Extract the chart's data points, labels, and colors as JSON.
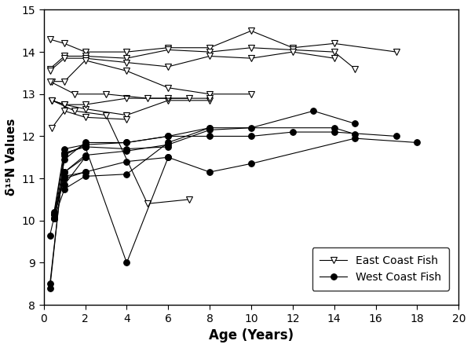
{
  "east_coast_series": [
    [
      [
        0.3,
        14.3
      ],
      [
        1.0,
        14.2
      ],
      [
        2.0,
        14.0
      ],
      [
        4.0,
        14.0
      ],
      [
        6.0,
        14.1
      ],
      [
        8.0,
        14.1
      ],
      [
        10.0,
        14.5
      ],
      [
        12.0,
        14.1
      ],
      [
        14.0,
        14.2
      ],
      [
        17.0,
        14.0
      ]
    ],
    [
      [
        0.3,
        13.6
      ],
      [
        1.0,
        13.9
      ],
      [
        2.0,
        13.9
      ],
      [
        4.0,
        13.85
      ],
      [
        6.0,
        14.05
      ],
      [
        8.0,
        14.0
      ],
      [
        10.0,
        14.1
      ],
      [
        12.0,
        14.05
      ],
      [
        14.0,
        14.0
      ],
      [
        15.0,
        13.6
      ]
    ],
    [
      [
        0.3,
        13.55
      ],
      [
        1.0,
        13.85
      ],
      [
        2.0,
        13.85
      ],
      [
        4.0,
        13.75
      ],
      [
        6.0,
        13.65
      ],
      [
        8.0,
        13.9
      ],
      [
        10.0,
        13.85
      ],
      [
        12.0,
        14.0
      ],
      [
        14.0,
        13.85
      ]
    ],
    [
      [
        0.4,
        13.3
      ],
      [
        1.0,
        13.3
      ],
      [
        2.0,
        13.8
      ],
      [
        4.0,
        13.55
      ],
      [
        6.0,
        13.15
      ],
      [
        8.0,
        13.0
      ],
      [
        10.0,
        13.0
      ]
    ],
    [
      [
        0.4,
        12.85
      ],
      [
        1.0,
        12.75
      ],
      [
        2.0,
        12.65
      ],
      [
        4.0,
        12.5
      ],
      [
        6.0,
        12.85
      ],
      [
        8.0,
        12.85
      ]
    ],
    [
      [
        0.4,
        12.2
      ],
      [
        1.0,
        12.6
      ],
      [
        2.0,
        12.45
      ],
      [
        4.0,
        12.4
      ]
    ],
    [
      [
        0.4,
        12.85
      ],
      [
        1.0,
        12.75
      ],
      [
        2.0,
        12.75
      ],
      [
        4.0,
        12.9
      ],
      [
        6.0,
        12.9
      ],
      [
        8.0,
        12.9
      ]
    ],
    [
      [
        0.4,
        12.85
      ],
      [
        1.5,
        12.6
      ],
      [
        3.0,
        12.5
      ],
      [
        5.0,
        10.4
      ],
      [
        7.0,
        10.5
      ]
    ],
    [
      [
        0.3,
        13.3
      ],
      [
        1.5,
        13.0
      ],
      [
        3.0,
        13.0
      ],
      [
        5.0,
        12.9
      ],
      [
        7.0,
        12.9
      ]
    ]
  ],
  "west_coast_series": [
    [
      [
        0.3,
        8.5
      ],
      [
        1.0,
        11.55
      ],
      [
        2.0,
        11.8
      ],
      [
        4.0,
        11.85
      ],
      [
        6.0,
        12.0
      ],
      [
        8.0,
        12.0
      ],
      [
        10.0,
        12.0
      ],
      [
        12.0,
        12.1
      ],
      [
        14.0,
        12.1
      ],
      [
        17.0,
        12.0
      ]
    ],
    [
      [
        0.3,
        8.4
      ],
      [
        1.0,
        11.6
      ],
      [
        2.0,
        11.75
      ],
      [
        4.0,
        9.0
      ],
      [
        6.0,
        11.5
      ],
      [
        8.0,
        11.15
      ],
      [
        10.0,
        11.35
      ],
      [
        15.0,
        11.95
      ],
      [
        18.0,
        11.85
      ]
    ],
    [
      [
        0.3,
        9.65
      ],
      [
        1.0,
        11.15
      ],
      [
        2.0,
        11.55
      ],
      [
        4.0,
        11.65
      ],
      [
        6.0,
        11.8
      ],
      [
        8.0,
        12.15
      ],
      [
        10.0,
        12.2
      ],
      [
        13.0,
        12.6
      ],
      [
        15.0,
        12.3
      ]
    ],
    [
      [
        0.5,
        10.05
      ],
      [
        1.0,
        11.45
      ],
      [
        2.0,
        11.85
      ],
      [
        4.0,
        11.85
      ],
      [
        6.0,
        12.0
      ],
      [
        8.0,
        12.2
      ],
      [
        14.0,
        12.2
      ],
      [
        15.0,
        12.05
      ]
    ],
    [
      [
        0.5,
        10.05
      ],
      [
        1.0,
        10.75
      ],
      [
        2.0,
        11.05
      ],
      [
        4.0,
        11.1
      ],
      [
        6.0,
        11.85
      ],
      [
        8.0,
        12.2
      ]
    ],
    [
      [
        0.5,
        10.15
      ],
      [
        1.0,
        11.6
      ],
      [
        2.0,
        11.75
      ],
      [
        4.0,
        11.7
      ],
      [
        6.0,
        11.75
      ]
    ],
    [
      [
        0.5,
        10.2
      ],
      [
        1.0,
        11.7
      ],
      [
        2.0,
        11.8
      ]
    ],
    [
      [
        0.5,
        10.05
      ],
      [
        1.0,
        11.05
      ],
      [
        2.0,
        11.15
      ],
      [
        4.0,
        11.4
      ],
      [
        6.0,
        11.5
      ]
    ],
    [
      [
        1.0,
        10.85
      ],
      [
        2.0,
        11.5
      ]
    ],
    [
      [
        1.0,
        11.0
      ],
      [
        2.0,
        11.15
      ]
    ],
    [
      [
        0.5,
        10.15
      ],
      [
        1.0,
        11.15
      ],
      [
        2.0,
        11.5
      ]
    ]
  ],
  "xlim": [
    0,
    20
  ],
  "ylim": [
    8,
    15
  ],
  "xticks": [
    0,
    2,
    4,
    6,
    8,
    10,
    12,
    14,
    16,
    18,
    20
  ],
  "yticks": [
    8,
    9,
    10,
    11,
    12,
    13,
    14,
    15
  ],
  "xlabel": "Age (Years)",
  "ylabel": "δ¹⁵N Values",
  "line_color": "#000000",
  "east_marker": "v",
  "west_marker": "o",
  "marker_color_east": "white",
  "marker_color_west": "black",
  "marker_edgecolor": "black",
  "figsize": [
    6.0,
    4.43
  ],
  "dpi": 100
}
